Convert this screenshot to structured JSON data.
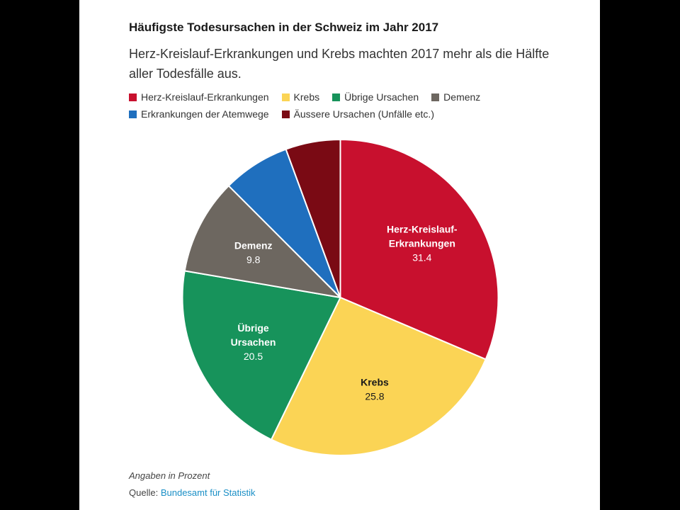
{
  "header": {
    "title": "Häufigste Todesursachen in der Schweiz im Jahr 2017",
    "subtitle": "Herz-Kreislauf-Erkrankungen und Krebs machten 2017 mehr als die Hälfte aller Todesfälle aus."
  },
  "footer": {
    "note": "Angaben in Prozent",
    "source_prefix": "Quelle:",
    "source_link": "Bundesamt für Statistik"
  },
  "colors": {
    "source_link": "#1a8fc6"
  },
  "chart_data": {
    "type": "pie",
    "unit": "Prozent",
    "start_angle_deg": 0,
    "direction": "clockwise",
    "legend_position": "top",
    "slices": [
      {
        "name": "Herz-Kreislauf-Erkrankungen",
        "label_lines": [
          "Herz-Kreislauf-",
          "Erkrankungen"
        ],
        "value": 31.4,
        "value_label": "31.4",
        "color": "#c8102e",
        "label_color": "#ffffff"
      },
      {
        "name": "Krebs",
        "label_lines": [
          "Krebs"
        ],
        "value": 25.8,
        "value_label": "25.8",
        "color": "#fbd455",
        "label_color": "#1a1a1a"
      },
      {
        "name": "Übrige Ursachen",
        "label_lines": [
          "Übrige",
          "Ursachen"
        ],
        "value": 20.5,
        "value_label": "20.5",
        "color": "#17935b",
        "label_color": "#ffffff"
      },
      {
        "name": "Demenz",
        "label_lines": [
          "Demenz"
        ],
        "value": 9.8,
        "value_label": "9.8",
        "color": "#6d6760",
        "label_color": "#ffffff"
      },
      {
        "name": "Erkrankungen der Atemwege",
        "label_lines": [],
        "value": 6.9,
        "value_label": "",
        "color": "#1f6fbe",
        "label_color": "#ffffff"
      },
      {
        "name": "Äussere Ursachen (Unfälle etc.)",
        "label_lines": [],
        "value": 5.6,
        "value_label": "",
        "color": "#7a0a14",
        "label_color": "#ffffff"
      }
    ]
  }
}
